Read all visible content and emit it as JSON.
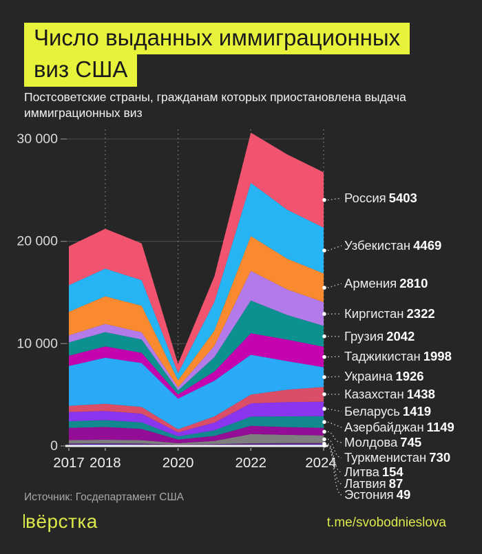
{
  "header": {
    "title_line1": "Число выданных иммиграционных",
    "title_line2": "виз США",
    "subtitle_line1": "Постсоветские страны, гражданам которых приостановлена выдача",
    "subtitle_line2": "иммиграционных виз",
    "highlight_color": "#e7f23b"
  },
  "footer": {
    "source": "Источник: Госдепартамент США",
    "logo": "вёрстка",
    "link": "t.me/svobodnieslova",
    "accent_color": "#dce94b"
  },
  "chart_data": {
    "type": "area",
    "stacked": true,
    "title": "Число выданных иммиграционных виз США",
    "x": [
      2017,
      2018,
      2019,
      2020,
      2021,
      2022,
      2023,
      2024
    ],
    "x_tick_labels": [
      "2017",
      "2018",
      "2020",
      "2022",
      "2024"
    ],
    "x_tick_years": [
      2017,
      2018,
      2020,
      2022,
      2024
    ],
    "vline_years": [
      2018,
      2020,
      2022,
      2024
    ],
    "y_ticks": [
      {
        "label": "0",
        "value": 0
      },
      {
        "label": "10 000",
        "value": 10000
      },
      {
        "label": "20 000",
        "value": 20000
      },
      {
        "label": "30 000",
        "value": 30000
      }
    ],
    "ylim": [
      0,
      31000
    ],
    "grid": true,
    "legend_position": "right",
    "series": [
      {
        "name": "Россия",
        "color": "#f0546f",
        "end_value": 5403,
        "values": [
          3800,
          3900,
          3600,
          900,
          2500,
          4900,
          5400,
          5403
        ]
      },
      {
        "name": "Узбекистан",
        "color": "#27b4f5",
        "end_value": 4469,
        "values": [
          2600,
          2700,
          2500,
          700,
          2800,
          5200,
          4800,
          4469
        ]
      },
      {
        "name": "Армения",
        "color": "#f98a2f",
        "end_value": 2810,
        "values": [
          2300,
          2700,
          2600,
          700,
          1500,
          3400,
          3000,
          2810
        ]
      },
      {
        "name": "Киргистан",
        "color": "#b27be9",
        "end_value": 2322,
        "values": [
          700,
          800,
          700,
          300,
          1100,
          2900,
          2500,
          2322
        ]
      },
      {
        "name": "Грузия",
        "color": "#0d9090",
        "end_value": 2042,
        "values": [
          1300,
          1400,
          1300,
          400,
          1400,
          3200,
          2400,
          2042
        ]
      },
      {
        "name": "Таджикистан",
        "color": "#c404ae",
        "end_value": 1998,
        "values": [
          1000,
          1100,
          1000,
          400,
          900,
          2100,
          2100,
          1998
        ]
      },
      {
        "name": "Украина",
        "color": "#2aa9f7",
        "end_value": 1926,
        "values": [
          3900,
          4500,
          4300,
          3000,
          3500,
          3900,
          2800,
          1926
        ]
      },
      {
        "name": "Казахстан",
        "color": "#db4e68",
        "end_value": 1438,
        "values": [
          600,
          700,
          650,
          300,
          600,
          850,
          1200,
          1438
        ]
      },
      {
        "name": "Беларусь",
        "color": "#8a36ee",
        "end_value": 1419,
        "values": [
          900,
          900,
          850,
          400,
          750,
          1300,
          1400,
          1419
        ]
      },
      {
        "name": "Азербайджан",
        "color": "#11898e",
        "end_value": 1149,
        "values": [
          650,
          670,
          640,
          300,
          550,
          900,
          1050,
          1149
        ]
      },
      {
        "name": "Молдова",
        "color": "#930d96",
        "end_value": 745,
        "values": [
          1200,
          1250,
          1100,
          350,
          500,
          800,
          760,
          745
        ]
      },
      {
        "name": "Туркменистан",
        "color": "#7f7f7f",
        "end_value": 730,
        "values": [
          320,
          340,
          320,
          150,
          300,
          900,
          800,
          730
        ]
      },
      {
        "name": "Литва",
        "color": "#5a2d82",
        "end_value": 154,
        "values": [
          120,
          130,
          120,
          60,
          90,
          140,
          150,
          154
        ]
      },
      {
        "name": "Латвия",
        "color": "#3d3de0",
        "end_value": 87,
        "values": [
          80,
          85,
          80,
          40,
          60,
          80,
          85,
          87
        ]
      },
      {
        "name": "Эстония",
        "color": "#9370db",
        "end_value": 49,
        "values": [
          45,
          50,
          45,
          25,
          35,
          45,
          48,
          49
        ]
      }
    ]
  }
}
